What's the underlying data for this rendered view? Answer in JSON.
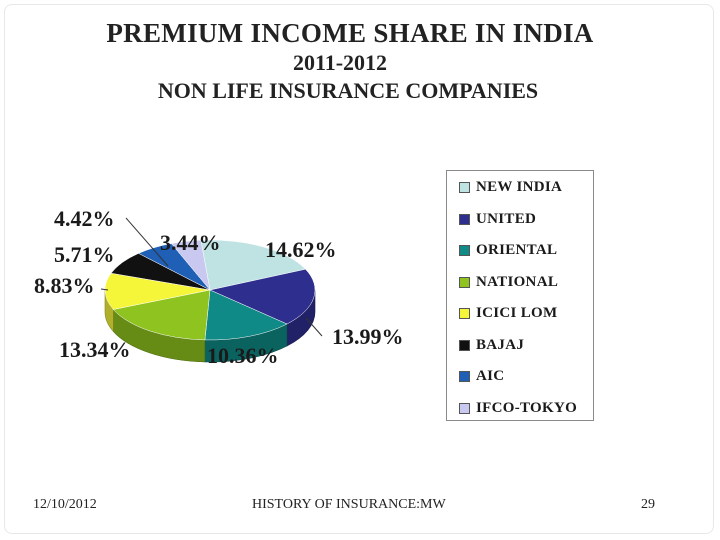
{
  "slide": {
    "title_line1": "PREMIUM INCOME SHARE IN INDIA",
    "title_line2": "2011-2012",
    "title_line3": "NON LIFE INSURANCE COMPANIES"
  },
  "chart_data": {
    "type": "pie",
    "title": "PREMIUM INCOME SHARE IN INDIA 2011-2012 NON LIFE INSURANCE COMPANIES",
    "categories": [
      "NEW INDIA",
      "UNITED",
      "ORIENTAL",
      "NATIONAL",
      "ICICI LOM",
      "BAJAJ",
      "AIC",
      "IFCO-TOKYO"
    ],
    "values": [
      14.62,
      13.99,
      10.36,
      13.34,
      8.83,
      5.71,
      4.42,
      3.44
    ],
    "labels": [
      "14.62%",
      "13.99%",
      "10.36%",
      "13.34%",
      "8.83%",
      "5.71%",
      "4.42%",
      "3.44%"
    ],
    "colors": [
      "#bfe3e3",
      "#2e2e8f",
      "#0f8a86",
      "#8fc31f",
      "#f5f53a",
      "#111111",
      "#1f5fb5",
      "#c8c8f0"
    ],
    "legend_position": "right",
    "style": "3d"
  },
  "footer": {
    "date": "12/10/2012",
    "center": "HISTORY OF INSURANCE:MW",
    "page": "29"
  }
}
